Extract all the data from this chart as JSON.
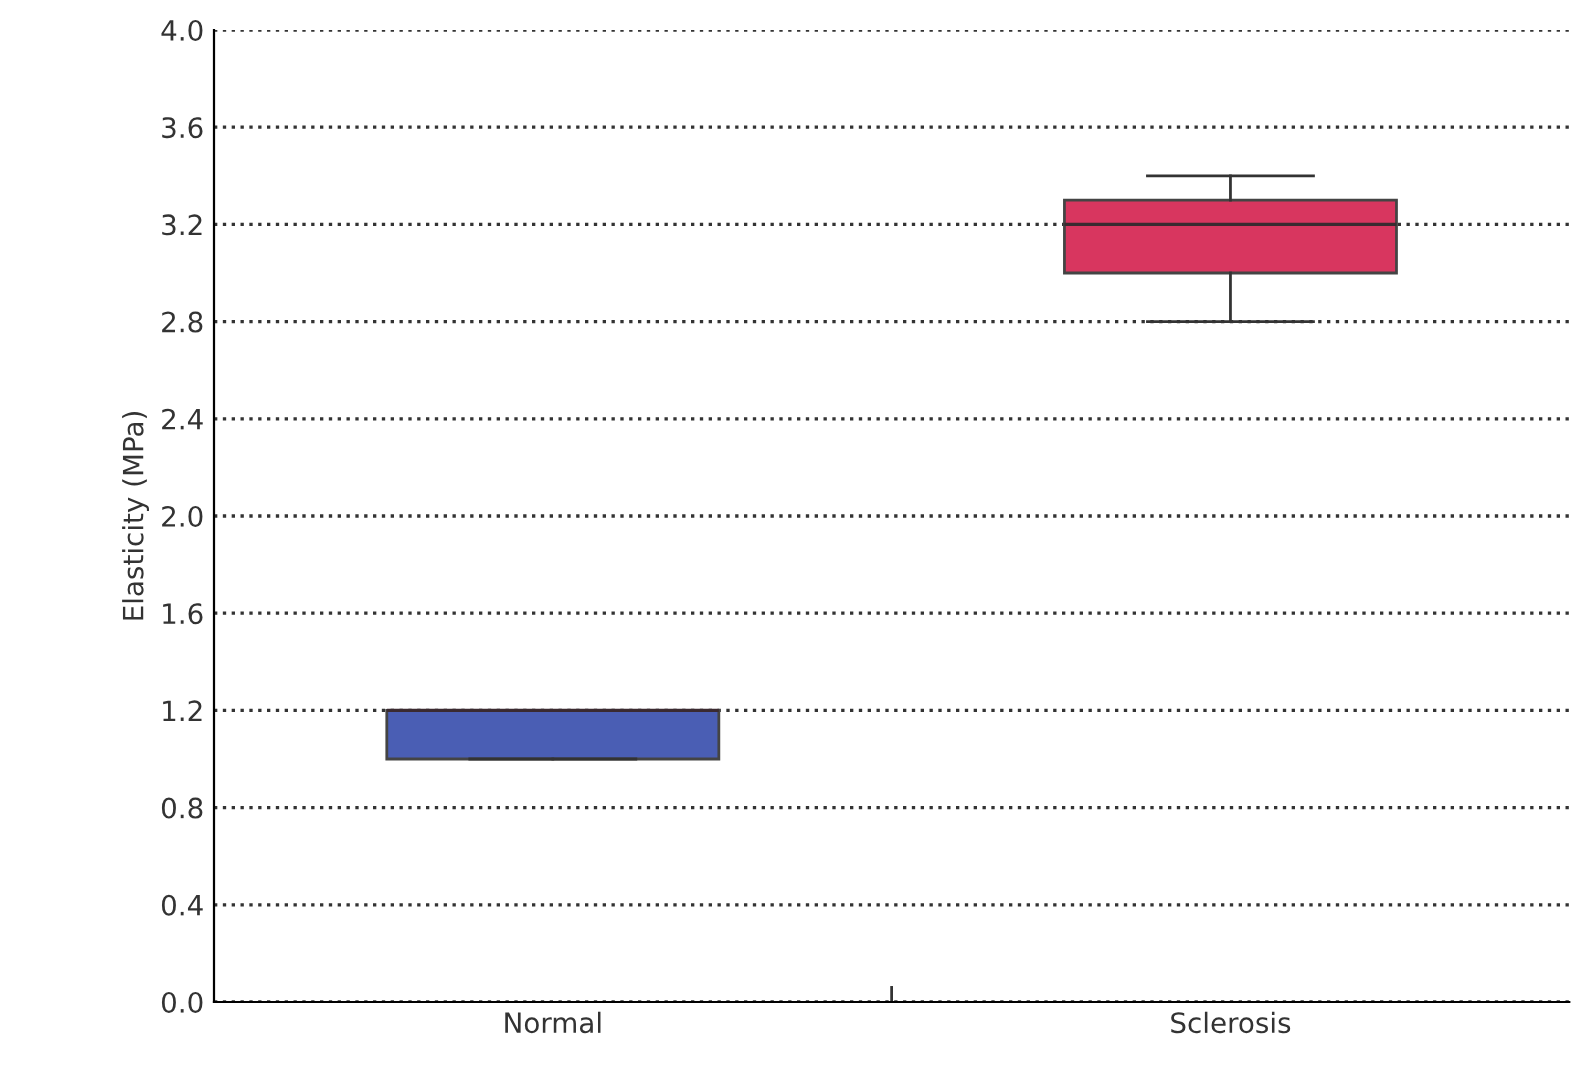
{
  "chart_data": {
    "type": "box",
    "ylabel": "Elasticity (MPa)",
    "categories": [
      "Normal",
      "Sclerosis"
    ],
    "colors": [
      "#4a5eb4",
      "#d8365f"
    ],
    "boxes": [
      {
        "low": 1.0,
        "q1": 1.0,
        "median": 1.2,
        "q3": 1.2,
        "high": 1.2
      },
      {
        "low": 2.8,
        "q1": 3.0,
        "median": 3.2,
        "q3": 3.3,
        "high": 3.4
      }
    ],
    "ylim": [
      0,
      4
    ],
    "yticks": [
      {
        "value": 0,
        "label": "0.0"
      },
      {
        "value": 0.4,
        "label": "0.4"
      },
      {
        "value": 0.8,
        "label": "0.8"
      },
      {
        "value": 1.2,
        "label": "1.2"
      },
      {
        "value": 1.6,
        "label": "1.6"
      },
      {
        "value": 2.0,
        "label": "2.0"
      },
      {
        "value": 2.4,
        "label": "2.4"
      },
      {
        "value": 2.8,
        "label": "2.8"
      },
      {
        "value": 3.2,
        "label": "3.2"
      },
      {
        "value": 3.6,
        "label": "3.6"
      },
      {
        "value": 4.0,
        "label": "4.0"
      }
    ],
    "grid": "y",
    "line_style": "dotted"
  }
}
